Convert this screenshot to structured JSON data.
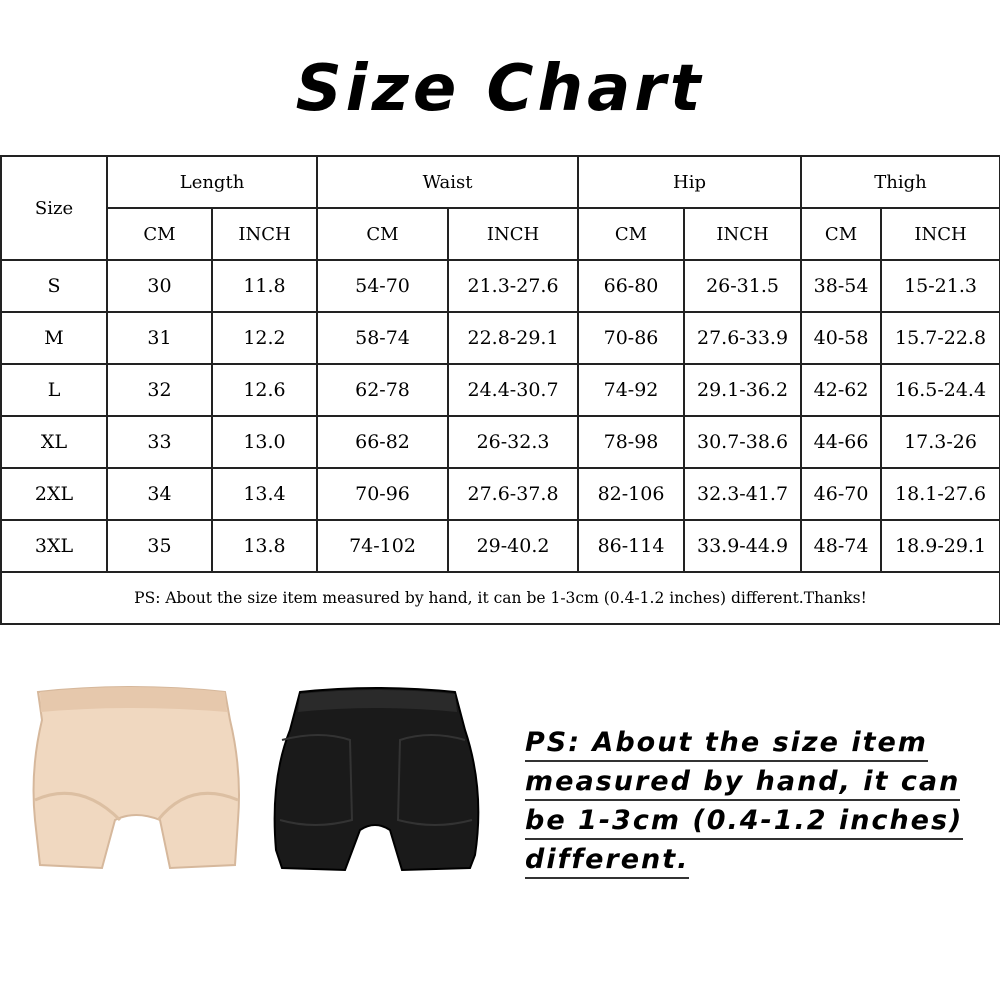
{
  "title": "Size Chart",
  "table": {
    "size_header": "Size",
    "groups": [
      "Length",
      "Waist",
      "Hip",
      "Thigh"
    ],
    "units": [
      "CM",
      "INCH"
    ],
    "rows": [
      [
        "S",
        "30",
        "11.8",
        "54-70",
        "21.3-27.6",
        "66-80",
        "26-31.5",
        "38-54",
        "15-21.3"
      ],
      [
        "M",
        "31",
        "12.2",
        "58-74",
        "22.8-29.1",
        "70-86",
        "27.6-33.9",
        "40-58",
        "15.7-22.8"
      ],
      [
        "L",
        "32",
        "12.6",
        "62-78",
        "24.4-30.7",
        "74-92",
        "29.1-36.2",
        "42-62",
        "16.5-24.4"
      ],
      [
        "XL",
        "33",
        "13.0",
        "66-82",
        "26-32.3",
        "78-98",
        "30.7-38.6",
        "44-66",
        "17.3-26"
      ],
      [
        "2XL",
        "34",
        "13.4",
        "70-96",
        "27.6-37.8",
        "82-106",
        "32.3-41.7",
        "46-70",
        "18.1-27.6"
      ],
      [
        "3XL",
        "35",
        "13.8",
        "74-102",
        "29-40.2",
        "86-114",
        "33.9-44.9",
        "48-74",
        "18.9-29.1"
      ]
    ],
    "note": "PS: About the size item measured by hand, it can be 1-3cm (0.4-1.2 inches) different.Thanks!"
  },
  "products": [
    {
      "color_name": "beige",
      "color": "#f0d8c0"
    },
    {
      "color_name": "black",
      "color": "#1a1a1a"
    }
  ],
  "ps_lines": [
    "PS: About the size item",
    "measured by hand, it can",
    "be 1-3cm (0.4-1.2 inches)",
    "different."
  ]
}
